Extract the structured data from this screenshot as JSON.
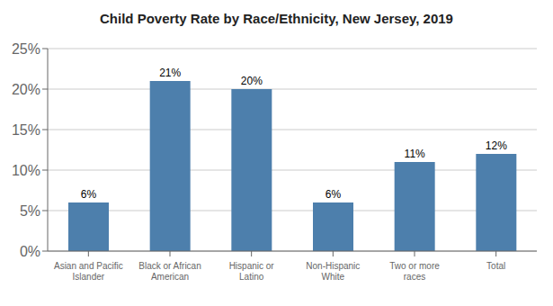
{
  "chart_data": {
    "type": "bar",
    "title": "Child Poverty Rate by Race/Ethnicity, New Jersey, 2019",
    "categories": [
      "Asian and Pacific\nIslander",
      "Black or African\nAmerican",
      "Hispanic or\nLatino",
      "Non-Hispanic\nWhite",
      "Two or more\nraces",
      "Total"
    ],
    "values": [
      6,
      21,
      20,
      6,
      11,
      12
    ],
    "value_labels": [
      "6%",
      "21%",
      "20%",
      "6%",
      "11%",
      "12%"
    ],
    "data_labels": true,
    "color": "#4d7fac",
    "ylim": [
      0,
      25
    ],
    "yticks": [
      {
        "value": 0,
        "label": "0%"
      },
      {
        "value": 5,
        "label": "5%"
      },
      {
        "value": 10,
        "label": "10%"
      },
      {
        "value": 15,
        "label": "15%"
      },
      {
        "value": 20,
        "label": "20%"
      },
      {
        "value": 25,
        "label": "25%"
      }
    ],
    "grid": true
  }
}
